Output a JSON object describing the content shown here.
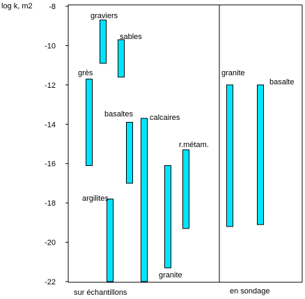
{
  "chart_data": {
    "type": "bar",
    "ylabel": "log k, m2",
    "ylim": [
      -22,
      -8
    ],
    "yticks": [
      -8,
      -10,
      -12,
      -14,
      -16,
      -18,
      -20,
      -22
    ],
    "panels": [
      {
        "label": "sur échantillons"
      },
      {
        "label": "en sondage"
      }
    ],
    "bar_color": "#00e5ff",
    "series": [
      {
        "name": "graviers",
        "panel": 0,
        "low": -10.9,
        "high": -8.7
      },
      {
        "name": "sables",
        "panel": 0,
        "low": -11.6,
        "high": -9.7
      },
      {
        "name": "grès",
        "panel": 0,
        "low": -16.1,
        "high": -11.7
      },
      {
        "name": "basaltes",
        "panel": 0,
        "low": -17.0,
        "high": -13.9
      },
      {
        "name": "calcaires",
        "panel": 0,
        "low": -22.0,
        "high": -13.7
      },
      {
        "name": "argilites",
        "panel": 0,
        "low": -22.0,
        "high": -17.8
      },
      {
        "name": "granite",
        "panel": 0,
        "low": -21.3,
        "high": -16.1
      },
      {
        "name": "r.métam.",
        "panel": 0,
        "low": -19.3,
        "high": -15.3
      },
      {
        "name": "granite",
        "panel": 1,
        "low": -19.2,
        "high": -12.0
      },
      {
        "name": "basalte",
        "panel": 1,
        "low": -19.1,
        "high": -12.0
      }
    ]
  }
}
